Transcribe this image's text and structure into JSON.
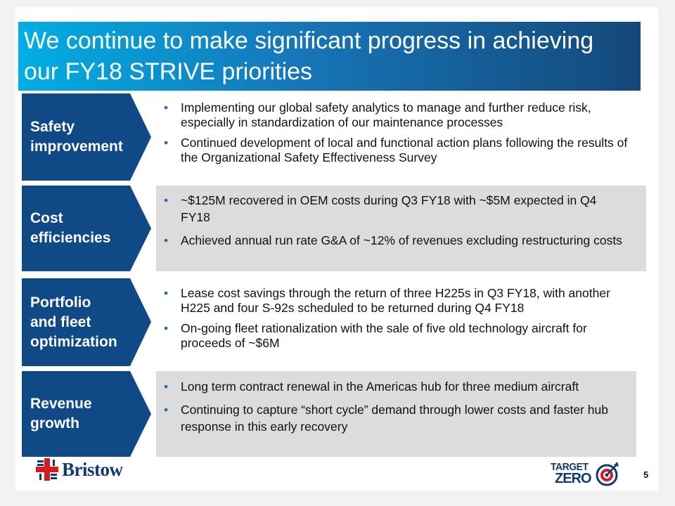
{
  "title": "We continue to make significant progress in achieving our FY18 STRIVE priorities",
  "sections": [
    {
      "label_lines": [
        "Safety",
        "improvement"
      ],
      "bullets": [
        "Implementing our global safety analytics to manage and further reduce risk, especially in standardization of our maintenance processes",
        "Continued development of local and functional action plans following the results of the Organizational Safety Effectiveness Survey"
      ]
    },
    {
      "label_lines": [
        "Cost",
        "efficiencies"
      ],
      "bullets": [
        "~$125M recovered in OEM costs during Q3 FY18 with ~$5M expected in Q4 FY18",
        "Achieved annual run rate G&A of ~12% of revenues excluding restructuring costs"
      ]
    },
    {
      "label_lines": [
        "Portfolio",
        "and fleet",
        "optimization"
      ],
      "bullets": [
        "Lease cost savings through the return of three H225s in Q3 FY18, with another H225 and four S-92s scheduled to be returned during Q4 FY18",
        "On-going fleet rationalization with the sale of five old technology aircraft for proceeds of ~$6M"
      ]
    },
    {
      "label_lines": [
        "Revenue",
        "growth"
      ],
      "bullets": [
        "Long term contract renewal in the Americas hub for three medium aircraft",
        "Continuing to capture “short cycle” demand through lower costs and faster hub response in this early recovery"
      ]
    }
  ],
  "footer": {
    "logo_text": "Bristow",
    "target_zero_top": "TARGET",
    "target_zero_bottom": "ZERO",
    "page_number": "5"
  },
  "colors": {
    "label_box": "#0f4a86",
    "row_highlight": "#dcdcdc",
    "bullet": "#1d70b7",
    "brand_navy": "#113a70",
    "brand_red": "#d71920"
  }
}
